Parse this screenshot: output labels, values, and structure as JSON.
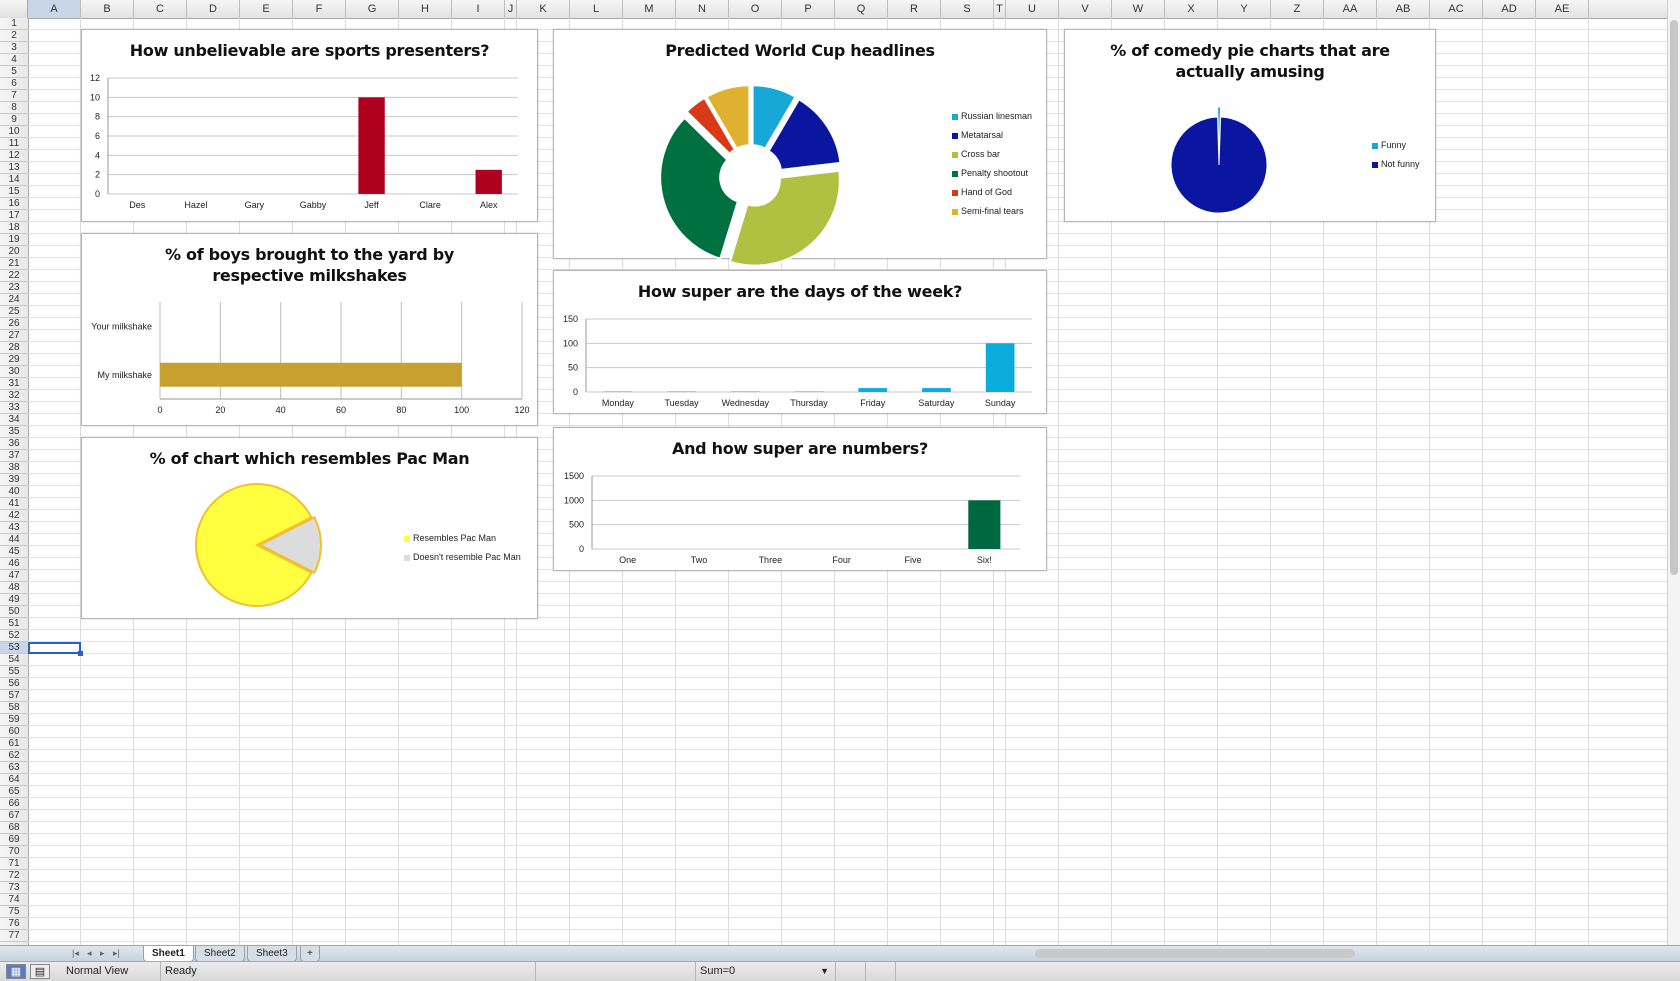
{
  "grid": {
    "columns": [
      "A",
      "B",
      "C",
      "D",
      "E",
      "F",
      "G",
      "H",
      "I",
      "J",
      "K",
      "L",
      "M",
      "N",
      "O",
      "P",
      "Q",
      "R",
      "S",
      "T",
      "U",
      "V",
      "W",
      "X",
      "Y",
      "Z",
      "AA",
      "AB",
      "AC",
      "AD",
      "AE"
    ],
    "rows": [
      "1",
      "2",
      "3",
      "4",
      "5",
      "6",
      "7",
      "8",
      "9",
      "10",
      "11",
      "12",
      "13",
      "14",
      "15",
      "16",
      "17",
      "18",
      "19",
      "20",
      "21",
      "22",
      "23",
      "24",
      "25",
      "26",
      "27",
      "28",
      "29",
      "30",
      "31",
      "32",
      "33",
      "34",
      "35",
      "36",
      "37",
      "38",
      "39",
      "40",
      "41",
      "42",
      "43",
      "44",
      "45",
      "46",
      "47",
      "48",
      "49",
      "50",
      "51",
      "52",
      "53",
      "54",
      "55",
      "56",
      "57",
      "58",
      "59",
      "60",
      "61",
      "62",
      "63",
      "64",
      "65",
      "66",
      "67",
      "68",
      "69",
      "70",
      "71",
      "72",
      "73",
      "74",
      "75",
      "76",
      "77"
    ],
    "selected_cell": "A53"
  },
  "charts": {
    "presenters": {
      "title": "How unbelievable are sports presenters?",
      "color": "#b00020"
    },
    "worldcup": {
      "title": "Predicted World Cup headlines",
      "colors": [
        "#18a8d8",
        "#0a16a0",
        "#b0c040",
        "#007040",
        "#d83a18",
        "#e0b030"
      ]
    },
    "comedy": {
      "title": "% of comedy pie charts that are actually amusing",
      "colors": [
        "#18a8d8",
        "#0a16a0"
      ]
    },
    "milkshake": {
      "title": "% of boys brought to the yard by respective milkshakes",
      "color": "#c8a030"
    },
    "days": {
      "title": "How super are the days of the week?",
      "color": "#0aacdc"
    },
    "numbers": {
      "title": "And how super are numbers?",
      "color": "#006840"
    },
    "pacman": {
      "title": "% of chart which resembles Pac Man",
      "colors": [
        "#ffff40",
        "#dcdcdc"
      ]
    }
  },
  "chart_data": [
    {
      "id": "presenters",
      "type": "bar",
      "title": "How unbelievable are sports presenters?",
      "categories": [
        "Des",
        "Hazel",
        "Gary",
        "Gabby",
        "Jeff",
        "Clare",
        "Alex"
      ],
      "values": [
        0,
        0,
        0,
        0,
        10,
        0,
        2.5
      ],
      "ylim": [
        0,
        12
      ],
      "yticks": [
        0,
        2,
        4,
        6,
        8,
        10,
        12
      ]
    },
    {
      "id": "worldcup",
      "type": "pie",
      "title": "Predicted World Cup headlines",
      "labels": [
        "Russian linesman",
        "Metatarsal",
        "Cross bar",
        "Penalty shootout",
        "Hand of God",
        "Semi-final tears"
      ],
      "values": [
        8,
        14,
        30,
        31,
        4,
        8
      ],
      "legend": "right"
    },
    {
      "id": "comedy",
      "type": "pie",
      "title": "% of comedy pie charts that are actually amusing",
      "labels": [
        "Funny",
        "Not funny"
      ],
      "values": [
        1,
        99
      ],
      "legend": "right"
    },
    {
      "id": "milkshake",
      "type": "bar",
      "orientation": "horizontal",
      "title": "% of boys brought to the yard by respective milkshakes",
      "categories": [
        "Your milkshake",
        "My milkshake"
      ],
      "values": [
        0,
        100
      ],
      "xlim": [
        0,
        120
      ],
      "xticks": [
        0,
        20,
        40,
        60,
        80,
        100,
        120
      ]
    },
    {
      "id": "days",
      "type": "bar",
      "title": "How super are the days of the week?",
      "categories": [
        "Monday",
        "Tuesday",
        "Wednesday",
        "Thursday",
        "Friday",
        "Saturday",
        "Sunday"
      ],
      "values": [
        1,
        1,
        1,
        1,
        8,
        8,
        100
      ],
      "ylim": [
        0,
        150
      ],
      "yticks": [
        0,
        50,
        100,
        150
      ]
    },
    {
      "id": "numbers",
      "type": "bar",
      "title": "And how super are numbers?",
      "categories": [
        "One",
        "Two",
        "Three",
        "Four",
        "Five",
        "Six!"
      ],
      "values": [
        0,
        0,
        0,
        0,
        0,
        1000
      ],
      "ylim": [
        0,
        1500
      ],
      "yticks": [
        0,
        500,
        1000,
        1500
      ]
    },
    {
      "id": "pacman",
      "type": "pie",
      "title": "% of chart which resembles Pac Man",
      "labels": [
        "Resembles Pac Man",
        "Doesn't resemble Pac Man"
      ],
      "values": [
        85,
        15
      ],
      "legend": "right"
    }
  ],
  "tabs": {
    "items": [
      "Sheet1",
      "Sheet2",
      "Sheet3"
    ],
    "add": "+",
    "nav": [
      "|◂",
      "◂",
      "▸",
      "▸|"
    ]
  },
  "status": {
    "view": "Normal View",
    "state": "Ready",
    "sum": "Sum=0"
  },
  "icons": {
    "view_normal": "grid-view-icon",
    "view_layout": "page-layout-icon",
    "dropdown": "chevron-down-icon"
  }
}
